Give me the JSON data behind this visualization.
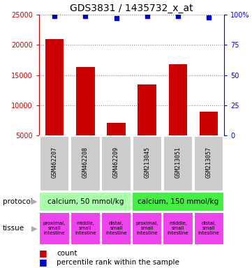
{
  "title": "GDS3831 / 1435732_x_at",
  "samples": [
    "GSM462207",
    "GSM462208",
    "GSM462209",
    "GSM213045",
    "GSM213051",
    "GSM213057"
  ],
  "counts": [
    21000,
    16300,
    7100,
    13400,
    16800,
    8900
  ],
  "percentiles": [
    99,
    99,
    97,
    99,
    99,
    98
  ],
  "ylim_left": [
    5000,
    25000
  ],
  "ylim_right": [
    0,
    100
  ],
  "bar_color": "#cc0000",
  "dot_color": "#0000cc",
  "yticks_left": [
    5000,
    10000,
    15000,
    20000,
    25000
  ],
  "ytick_labels_left": [
    "5000",
    "10000",
    "15000",
    "20000",
    "25000"
  ],
  "yticks_right": [
    0,
    25,
    50,
    75,
    100
  ],
  "ytick_labels_right": [
    "0",
    "25",
    "50",
    "75",
    "100%"
  ],
  "protocol_info": [
    [
      0,
      3,
      "calcium, 50 mmol/kg",
      "#aaffaa"
    ],
    [
      3,
      6,
      "calcium, 150 mmol/kg",
      "#44ee44"
    ]
  ],
  "tissue_labels": [
    "proximal,\nsmall\nintestine",
    "middle,\nsmall\nintestine",
    "distal,\nsmall\nintestine",
    "proximal,\nsmall\nintestine",
    "middle,\nsmall\nintestine",
    "distal,\nsmall\nintestine"
  ],
  "tissue_color": "#ee44ee",
  "sample_box_color": "#cccccc",
  "grid_color": "#888888",
  "left_axis_color": "#cc0000",
  "right_axis_color": "#0000cc",
  "title_fontsize": 10,
  "bar_width": 0.6,
  "fig_width": 3.61,
  "fig_height": 3.84,
  "dpi": 100
}
